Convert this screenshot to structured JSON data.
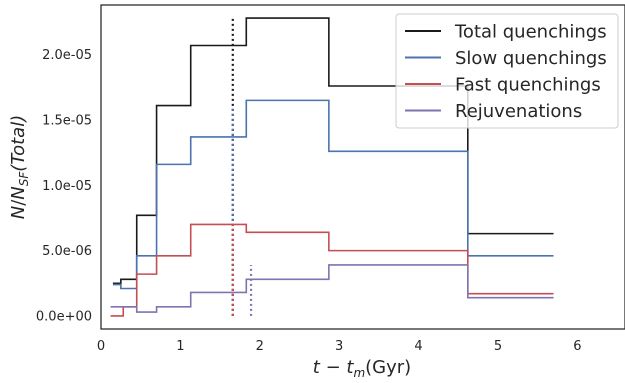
{
  "chart_data": {
    "type": "line",
    "drawstyle": "steps-post",
    "xlabel": "t − t_m(Gyr)",
    "ylabel": "N/N_SF(Total)",
    "xlim": [
      0,
      6.6
    ],
    "ylim": [
      -1e-06,
      2.38e-05
    ],
    "xticks": [
      0,
      1,
      2,
      3,
      4,
      5,
      6
    ],
    "yticks": [
      0,
      5e-06,
      1e-05,
      1.5e-05,
      2e-05
    ],
    "ytick_labels": [
      "0.0e+00",
      "5.0e-06",
      "1.0e-05",
      "1.5e-05",
      "2.0e-05"
    ],
    "legend_position": "top-right",
    "grid": false,
    "series": [
      {
        "name": "Total quenchings",
        "color": "#1a1a1a",
        "x": [
          0.15,
          0.25,
          0.45,
          0.7,
          1.13,
          1.83,
          2.87,
          4.62,
          5.7
        ],
        "y": [
          2.5e-06,
          2.8e-06,
          7.7e-06,
          1.61e-05,
          2.07e-05,
          2.28e-05,
          1.76e-05,
          6.3e-06,
          6.3e-06
        ]
      },
      {
        "name": "Slow quenchings",
        "color": "#4c72b0",
        "x": [
          0.15,
          0.25,
          0.45,
          0.7,
          1.13,
          1.83,
          2.87,
          4.62,
          5.7
        ],
        "y": [
          2.4e-06,
          2.1e-06,
          4.6e-06,
          1.16e-05,
          1.37e-05,
          1.65e-05,
          1.26e-05,
          4.6e-06,
          4.6e-06
        ]
      },
      {
        "name": "Fast quenchings",
        "color": "#c44e52",
        "x": [
          0.12,
          0.28,
          0.45,
          0.7,
          1.13,
          1.83,
          2.87,
          4.62,
          5.7
        ],
        "y": [
          0.0,
          7e-07,
          3.2e-06,
          4.6e-06,
          7e-06,
          6.4e-06,
          5e-06,
          1.7e-06,
          1.7e-06
        ]
      },
      {
        "name": "Rejuvenations",
        "color": "#8172b2",
        "x": [
          0.12,
          0.45,
          0.7,
          1.13,
          1.83,
          2.87,
          4.62,
          5.7
        ],
        "y": [
          7e-07,
          3e-07,
          7e-07,
          1.8e-06,
          2.8e-06,
          3.9e-06,
          1.4e-06,
          1.4e-06
        ]
      }
    ],
    "vlines": [
      {
        "x": 1.66,
        "ymin": 0.0,
        "ymax": 2.28e-05,
        "color": "#1a1a1a",
        "style": "dotted"
      },
      {
        "x": 1.66,
        "ymin": 0.0,
        "ymax": 1.6e-05,
        "color": "#4c72b0",
        "style": "dotted"
      },
      {
        "x": 1.66,
        "ymin": 0.0,
        "ymax": 7e-06,
        "color": "#c44e52",
        "style": "dotted"
      },
      {
        "x": 1.89,
        "ymin": 0.0,
        "ymax": 3.9e-06,
        "color": "#8172b2",
        "style": "dotted"
      }
    ]
  }
}
